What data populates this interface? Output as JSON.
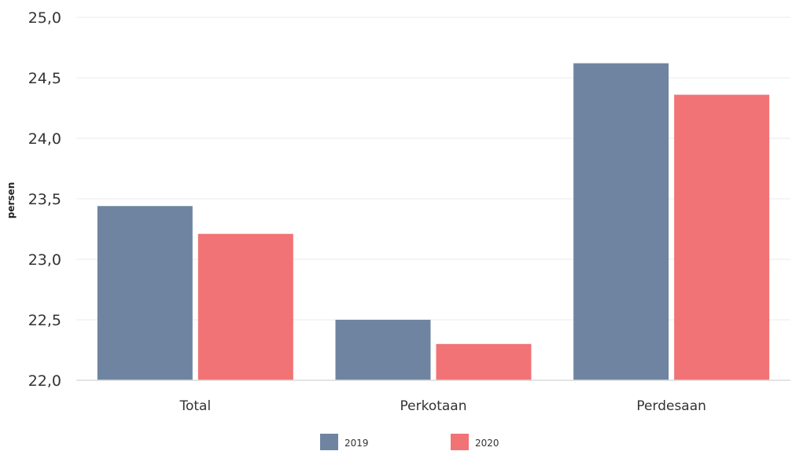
{
  "chart_data": {
    "type": "bar",
    "title": "",
    "xlabel": "",
    "ylabel": "persen",
    "categories": [
      "Total",
      "Perkotaan",
      "Perdesaan"
    ],
    "series": [
      {
        "name": "2019",
        "values": [
          23.44,
          22.5,
          24.62
        ],
        "color": "#6f84a1"
      },
      {
        "name": "2020",
        "values": [
          23.21,
          22.3,
          24.36
        ],
        "color": "#f17375"
      }
    ],
    "ylim": [
      22.0,
      25.0
    ],
    "yticks": [
      "22,0",
      "22,5",
      "23,0",
      "23,5",
      "24,0",
      "24,5",
      "25,0"
    ],
    "grid": true,
    "legend_position": "bottom-center"
  }
}
